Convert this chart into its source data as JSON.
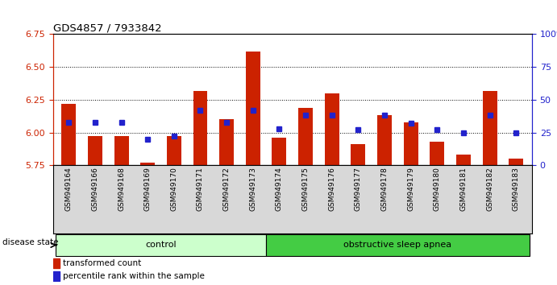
{
  "title": "GDS4857 / 7933842",
  "samples": [
    "GSM949164",
    "GSM949166",
    "GSM949168",
    "GSM949169",
    "GSM949170",
    "GSM949171",
    "GSM949172",
    "GSM949173",
    "GSM949174",
    "GSM949175",
    "GSM949176",
    "GSM949177",
    "GSM949178",
    "GSM949179",
    "GSM949180",
    "GSM949181",
    "GSM949182",
    "GSM949183"
  ],
  "red_values": [
    6.22,
    5.97,
    5.97,
    5.77,
    5.97,
    6.32,
    6.1,
    6.62,
    5.96,
    6.19,
    6.3,
    5.91,
    6.13,
    6.08,
    5.93,
    5.83,
    6.32,
    5.8
  ],
  "blue_values": [
    33,
    33,
    33,
    20,
    22,
    42,
    33,
    42,
    28,
    38,
    38,
    27,
    38,
    32,
    27,
    25,
    38,
    25
  ],
  "ylim_left": [
    5.75,
    6.75
  ],
  "ylim_right": [
    0,
    100
  ],
  "yticks_left": [
    5.75,
    6.0,
    6.25,
    6.5,
    6.75
  ],
  "yticks_right": [
    0,
    25,
    50,
    75,
    100
  ],
  "grid_lines": [
    6.0,
    6.25,
    6.5
  ],
  "bar_bottom": 5.75,
  "control_count": 8,
  "control_label": "control",
  "apnea_label": "obstructive sleep apnea",
  "legend_red_label": "transformed count",
  "legend_blue_label": "percentile rank within the sample",
  "disease_state_label": "disease state",
  "bar_color": "#cc2200",
  "dot_color": "#2222cc",
  "control_bg": "#ccffcc",
  "apnea_bg": "#44cc44",
  "left_axis_color": "#cc2200",
  "right_axis_color": "#2222cc",
  "xtick_bg": "#d8d8d8"
}
